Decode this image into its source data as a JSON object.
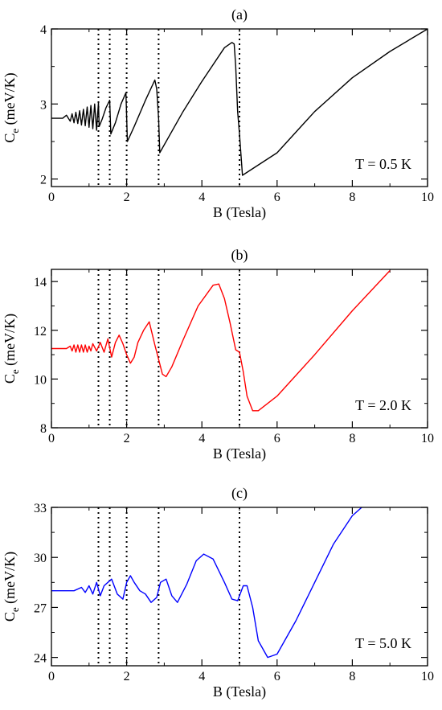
{
  "chart_data": [
    {
      "type": "line",
      "title": "(a)",
      "xlabel": "B (Tesla)",
      "ylabel": "C_e (meV/K)",
      "ylabel_main": "C",
      "ylabel_sub": "e",
      "ylabel_unit": " (meV/K)",
      "xlim": [
        0,
        10
      ],
      "ylim": [
        1.9,
        4.0
      ],
      "xticks": [
        "0",
        "2",
        "4",
        "6",
        "8",
        "10"
      ],
      "yticks": [
        "2",
        "3",
        "4"
      ],
      "annotation": "T = 0.5 K",
      "color": "#000000",
      "vlines": [
        1.25,
        1.55,
        2.0,
        2.85,
        5.0
      ],
      "series": [
        {
          "x": [
            0,
            0.3,
            0.4,
            0.5,
            0.55,
            0.6,
            0.65,
            0.7,
            0.75,
            0.8,
            0.85,
            0.9,
            0.95,
            1.0,
            1.05,
            1.1,
            1.15,
            1.2,
            1.25,
            1.27,
            1.35,
            1.45,
            1.55,
            1.58,
            1.7,
            1.85,
            1.98,
            2.02,
            2.2,
            2.5,
            2.75,
            2.8,
            2.85,
            2.88,
            3.5,
            4.0,
            4.6,
            4.8,
            4.86,
            4.9,
            4.95,
            5.0,
            5.08,
            6.0,
            7.0,
            8.0,
            9.0,
            10.0
          ],
          "y": [
            2.81,
            2.81,
            2.85,
            2.77,
            2.87,
            2.75,
            2.89,
            2.74,
            2.91,
            2.72,
            2.93,
            2.71,
            2.96,
            2.69,
            2.98,
            2.67,
            3.0,
            2.65,
            3.02,
            2.7,
            2.8,
            2.95,
            3.05,
            2.6,
            2.75,
            3.0,
            3.15,
            2.5,
            2.7,
            3.05,
            3.32,
            3.2,
            2.8,
            2.35,
            2.9,
            3.3,
            3.75,
            3.82,
            3.8,
            3.5,
            2.9,
            2.6,
            2.05,
            2.35,
            2.9,
            3.35,
            3.7,
            4.0
          ]
        }
      ]
    },
    {
      "type": "line",
      "title": "(b)",
      "xlabel": "B (Tesla)",
      "ylabel": "C_e (meV/K)",
      "ylabel_main": "C",
      "ylabel_sub": "e",
      "ylabel_unit": " (meV/K)",
      "xlim": [
        0,
        10
      ],
      "ylim": [
        8,
        14.5
      ],
      "xticks": [
        "0",
        "2",
        "4",
        "6",
        "8",
        "10"
      ],
      "yticks": [
        "8",
        "10",
        "12",
        "14"
      ],
      "annotation": "T = 2.0 K",
      "color": "#ff0000",
      "vlines": [
        1.25,
        1.55,
        2.0,
        2.85,
        5.0
      ],
      "series": [
        {
          "x": [
            0,
            0.4,
            0.5,
            0.55,
            0.6,
            0.65,
            0.7,
            0.75,
            0.8,
            0.85,
            0.9,
            0.95,
            1.0,
            1.05,
            1.1,
            1.2,
            1.3,
            1.4,
            1.5,
            1.6,
            1.7,
            1.8,
            1.9,
            2.0,
            2.1,
            2.2,
            2.3,
            2.45,
            2.6,
            2.75,
            2.85,
            2.95,
            3.05,
            3.2,
            3.5,
            3.9,
            4.3,
            4.45,
            4.6,
            4.75,
            4.9,
            5.0,
            5.1,
            5.2,
            5.35,
            5.5,
            6.0,
            7.0,
            8.0,
            9.0
          ],
          "y": [
            11.25,
            11.25,
            11.35,
            11.15,
            11.4,
            11.1,
            11.4,
            11.1,
            11.4,
            11.1,
            11.4,
            11.1,
            11.35,
            11.15,
            11.45,
            11.15,
            11.5,
            11.1,
            11.65,
            10.9,
            11.5,
            11.8,
            11.45,
            11.0,
            10.65,
            10.9,
            11.5,
            12.0,
            12.35,
            11.4,
            10.8,
            10.2,
            10.1,
            10.5,
            11.6,
            13.0,
            13.85,
            13.9,
            13.3,
            12.3,
            11.2,
            11.1,
            10.3,
            9.3,
            8.7,
            8.7,
            9.3,
            11.0,
            12.8,
            14.45
          ]
        }
      ]
    },
    {
      "type": "line",
      "title": "(c)",
      "xlabel": "B (Tesla)",
      "ylabel": "C_e (meV/K)",
      "ylabel_main": "C",
      "ylabel_sub": "e",
      "ylabel_unit": " (meV/K)",
      "xlim": [
        0,
        10
      ],
      "ylim": [
        23.5,
        33
      ],
      "xticks": [
        "0",
        "2",
        "4",
        "6",
        "8",
        "10"
      ],
      "yticks": [
        "24",
        "27",
        "30",
        "33"
      ],
      "annotation": "T = 5.0 K",
      "color": "#0000ff",
      "vlines": [
        1.25,
        1.55,
        2.0,
        2.85,
        5.0
      ],
      "series": [
        {
          "x": [
            0,
            0.6,
            0.8,
            0.9,
            1.0,
            1.1,
            1.2,
            1.3,
            1.4,
            1.5,
            1.6,
            1.75,
            1.9,
            2.0,
            2.1,
            2.2,
            2.35,
            2.5,
            2.65,
            2.8,
            2.9,
            3.05,
            3.2,
            3.35,
            3.6,
            3.85,
            4.05,
            4.3,
            4.6,
            4.8,
            4.95,
            5.1,
            5.2,
            5.35,
            5.5,
            5.75,
            6.0,
            6.5,
            7.0,
            7.5,
            8.0,
            8.25
          ],
          "y": [
            28.0,
            28.0,
            28.2,
            27.9,
            28.3,
            27.8,
            28.5,
            27.7,
            28.3,
            28.5,
            28.7,
            27.8,
            27.5,
            28.5,
            28.9,
            28.5,
            28.0,
            27.8,
            27.3,
            27.6,
            28.5,
            28.7,
            27.7,
            27.3,
            28.4,
            29.8,
            30.2,
            29.9,
            28.5,
            27.5,
            27.4,
            28.3,
            28.3,
            27.0,
            25.0,
            24.0,
            24.2,
            26.2,
            28.5,
            30.8,
            32.5,
            33.0
          ]
        }
      ]
    }
  ]
}
